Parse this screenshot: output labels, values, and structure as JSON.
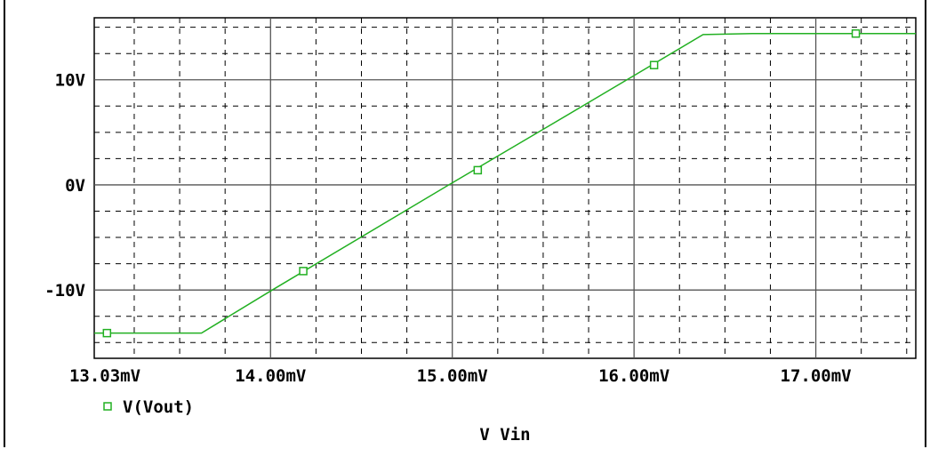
{
  "chart_data": {
    "type": "line",
    "xlabel": "V_Vin",
    "xlabel_display": "V Vin",
    "x_ticks": [
      "13.03mV",
      "14.00mV",
      "15.00mV",
      "16.00mV",
      "17.00mV"
    ],
    "x_tick_values": [
      13.03,
      14.0,
      15.0,
      16.0,
      17.0
    ],
    "y_ticks": [
      "10V",
      "0V",
      "-10V"
    ],
    "y_tick_values": [
      10,
      0,
      -10
    ],
    "xlim": [
      13.03,
      17.55
    ],
    "ylim": [
      -16.5,
      15.9
    ],
    "grid": true,
    "legend_position": "bottom-left",
    "colors": {
      "trace": "#22b022",
      "axes": "#000000",
      "grid": "#000000"
    },
    "series": [
      {
        "name": "V(Vout)",
        "marker": "square",
        "points": [
          [
            13.03,
            -14.1
          ],
          [
            13.62,
            -14.1
          ],
          [
            14.0,
            -10.1
          ],
          [
            15.0,
            0.2
          ],
          [
            15.55,
            5.8
          ],
          [
            16.0,
            10.4
          ],
          [
            16.38,
            14.3
          ],
          [
            16.65,
            14.4
          ],
          [
            17.55,
            14.4
          ]
        ],
        "marker_points": [
          [
            13.1,
            -14.1
          ],
          [
            14.18,
            -8.2
          ],
          [
            15.14,
            1.4
          ],
          [
            16.11,
            11.4
          ],
          [
            17.22,
            14.4
          ]
        ]
      }
    ]
  }
}
